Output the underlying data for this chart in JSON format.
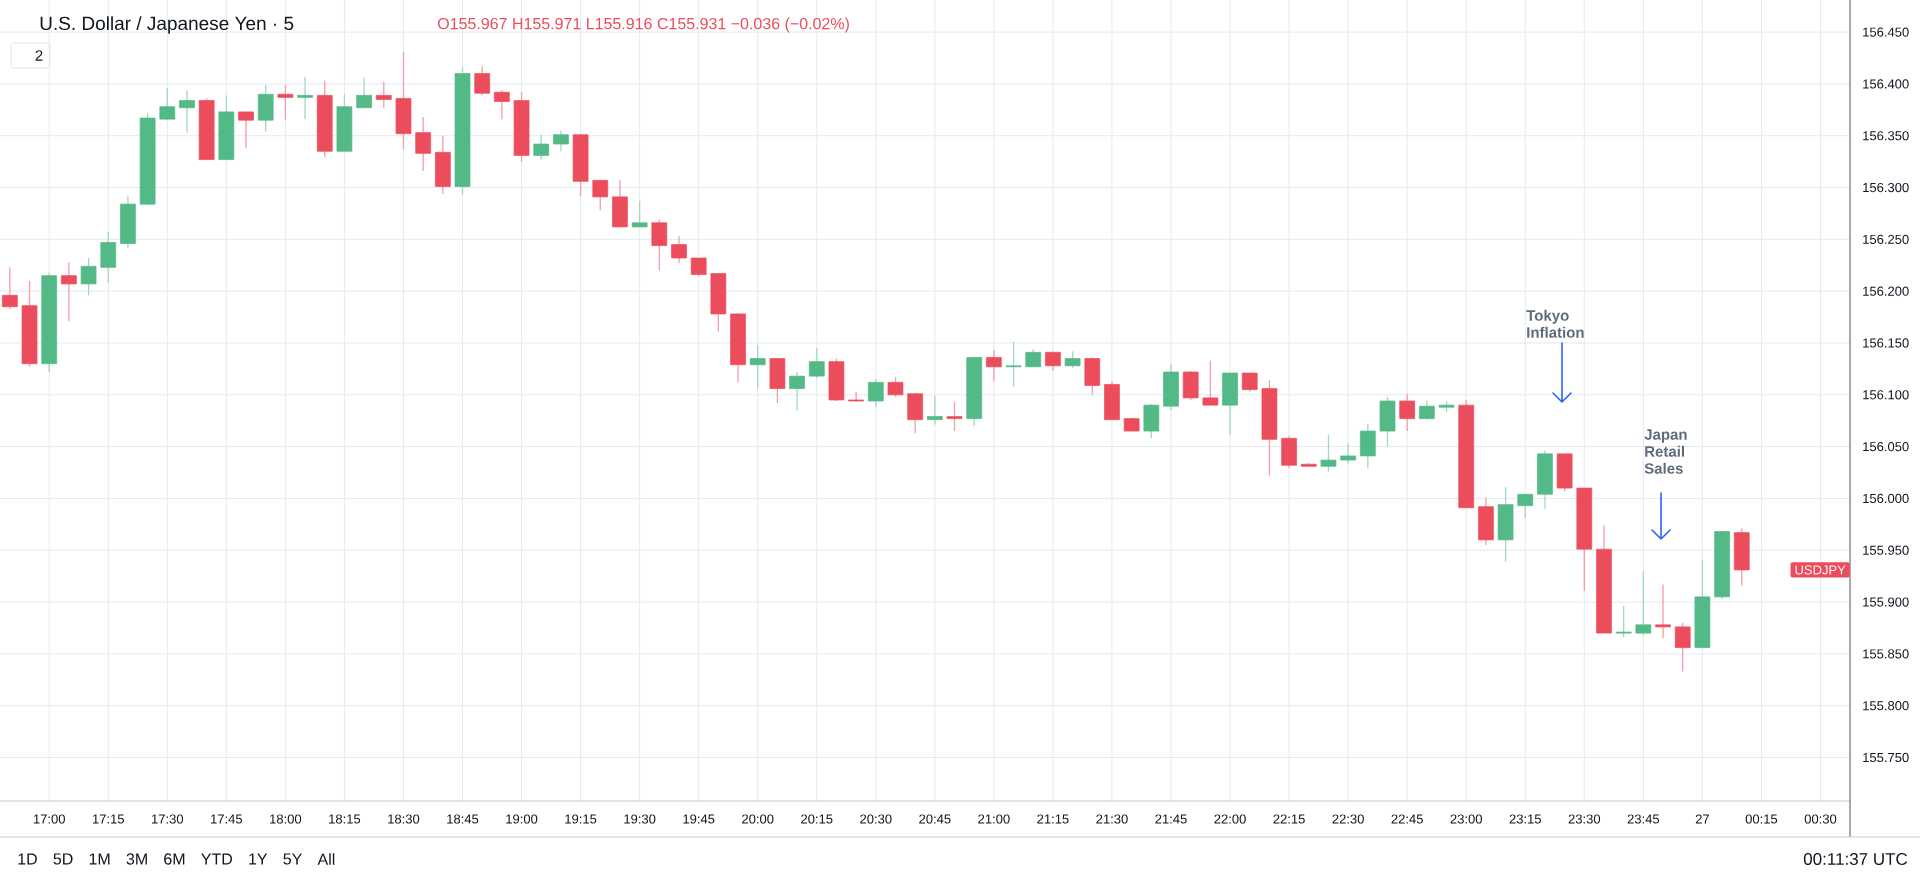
{
  "chart_data": {
    "type": "candlestick",
    "title": "U.S. Dollar / Japanese Yen · 5",
    "subtitle": "O155.967 H155.971 L155.916 C155.931 −0.036 (−0.02%)",
    "categories": [
      null,
      null,
      "17:00",
      null,
      null,
      "17:15",
      null,
      null,
      "17:30",
      null,
      null,
      "17:45",
      null,
      null,
      "18:00",
      null,
      null,
      "18:15",
      null,
      null,
      "18:30",
      null,
      null,
      "18:45",
      null,
      null,
      "19:00",
      null,
      null,
      "19:15",
      null,
      null,
      "19:30",
      null,
      null,
      "19:45",
      null,
      null,
      "20:00",
      null,
      null,
      "20:15",
      null,
      null,
      "20:30",
      null,
      null,
      "20:45",
      null,
      null,
      "21:00",
      null,
      null,
      "21:15",
      null,
      null,
      "21:30",
      null,
      null,
      "21:45",
      null,
      null,
      "22:00",
      null,
      null,
      "22:15",
      null,
      null,
      "22:30",
      null,
      null,
      "22:45",
      null,
      null,
      "23:00",
      null,
      null,
      "23:15",
      null,
      null,
      "23:30",
      null,
      null,
      "23:45",
      null,
      null,
      "27",
      null,
      null,
      "00:15",
      null,
      null,
      "00:30",
      null
    ],
    "series": [
      {
        "name": "USDJPY",
        "ohlc": [
          [
            156.196,
            156.223,
            156.183,
            156.185
          ],
          [
            156.186,
            156.21,
            156.127,
            156.13
          ],
          [
            156.13,
            156.218,
            156.122,
            156.215
          ],
          [
            156.215,
            156.228,
            156.171,
            156.207
          ],
          [
            156.207,
            156.232,
            156.196,
            156.224
          ],
          [
            156.223,
            156.257,
            156.208,
            156.247
          ],
          [
            156.246,
            156.292,
            156.242,
            156.284
          ],
          [
            156.284,
            156.372,
            156.283,
            156.367
          ],
          [
            156.366,
            156.396,
            156.365,
            156.378
          ],
          [
            156.377,
            156.394,
            156.353,
            156.384
          ],
          [
            156.384,
            156.386,
            156.327,
            156.327
          ],
          [
            156.327,
            156.389,
            156.327,
            156.373
          ],
          [
            156.373,
            156.373,
            156.338,
            156.365
          ],
          [
            156.365,
            156.399,
            156.354,
            156.39
          ],
          [
            156.39,
            156.399,
            156.365,
            156.387
          ],
          [
            156.387,
            156.407,
            156.366,
            156.389
          ],
          [
            156.389,
            156.403,
            156.329,
            156.335
          ],
          [
            156.335,
            156.39,
            156.335,
            156.378
          ],
          [
            156.377,
            156.406,
            156.377,
            156.389
          ],
          [
            156.389,
            156.402,
            156.377,
            156.385
          ],
          [
            156.386,
            156.431,
            156.337,
            156.352
          ],
          [
            156.353,
            156.368,
            156.316,
            156.333
          ],
          [
            156.334,
            156.35,
            156.294,
            156.301
          ],
          [
            156.301,
            156.416,
            156.293,
            156.41
          ],
          [
            156.41,
            156.417,
            156.389,
            156.391
          ],
          [
            156.392,
            156.394,
            156.366,
            156.383
          ],
          [
            156.384,
            156.392,
            156.325,
            156.331
          ],
          [
            156.331,
            156.351,
            156.327,
            156.342
          ],
          [
            156.342,
            156.355,
            156.335,
            156.351
          ],
          [
            156.351,
            156.351,
            156.292,
            156.306
          ],
          [
            156.307,
            156.307,
            156.278,
            156.291
          ],
          [
            156.291,
            156.307,
            156.262,
            156.262
          ],
          [
            156.262,
            156.287,
            156.262,
            156.266
          ],
          [
            156.266,
            156.269,
            156.22,
            156.244
          ],
          [
            156.245,
            156.253,
            156.227,
            156.232
          ],
          [
            156.232,
            156.232,
            156.215,
            156.216
          ],
          [
            156.217,
            156.217,
            156.161,
            156.178
          ],
          [
            156.178,
            156.179,
            156.112,
            156.129
          ],
          [
            156.129,
            156.148,
            156.106,
            156.135
          ],
          [
            156.135,
            156.135,
            156.092,
            156.106
          ],
          [
            156.106,
            156.122,
            156.085,
            156.118
          ],
          [
            156.118,
            156.145,
            156.116,
            156.132
          ],
          [
            156.132,
            156.135,
            156.094,
            156.095
          ],
          [
            156.095,
            156.103,
            156.093,
            156.094
          ],
          [
            156.094,
            156.115,
            156.088,
            156.112
          ],
          [
            156.112,
            156.117,
            156.098,
            156.1
          ],
          [
            156.101,
            156.102,
            156.063,
            156.076
          ],
          [
            156.076,
            156.099,
            156.071,
            156.079
          ],
          [
            156.079,
            156.093,
            156.065,
            156.077
          ],
          [
            156.077,
            156.136,
            156.07,
            156.136
          ],
          [
            156.136,
            156.143,
            156.113,
            156.127
          ],
          [
            156.127,
            156.151,
            156.108,
            156.128
          ],
          [
            156.127,
            156.144,
            156.127,
            156.141
          ],
          [
            156.141,
            156.142,
            156.123,
            156.128
          ],
          [
            156.128,
            156.142,
            156.126,
            156.135
          ],
          [
            156.135,
            156.136,
            156.1,
            156.109
          ],
          [
            156.11,
            156.113,
            156.076,
            156.076
          ],
          [
            156.077,
            156.078,
            156.065,
            156.065
          ],
          [
            156.065,
            156.091,
            156.058,
            156.09
          ],
          [
            156.089,
            156.13,
            156.085,
            156.122
          ],
          [
            156.122,
            156.123,
            156.095,
            156.097
          ],
          [
            156.097,
            156.133,
            156.09,
            156.09
          ],
          [
            156.09,
            156.121,
            156.062,
            156.121
          ],
          [
            156.121,
            156.121,
            156.103,
            156.105
          ],
          [
            156.106,
            156.114,
            156.022,
            156.057
          ],
          [
            156.058,
            156.06,
            156.029,
            156.032
          ],
          [
            156.033,
            156.034,
            156.031,
            156.031
          ],
          [
            156.031,
            156.061,
            156.026,
            156.037
          ],
          [
            156.037,
            156.053,
            156.033,
            156.041
          ],
          [
            156.041,
            156.072,
            156.029,
            156.065
          ],
          [
            156.065,
            156.098,
            156.05,
            156.094
          ],
          [
            156.094,
            156.101,
            156.065,
            156.077
          ],
          [
            156.077,
            156.094,
            156.076,
            156.089
          ],
          [
            156.088,
            156.094,
            156.083,
            156.09
          ],
          [
            156.09,
            156.095,
            155.991,
            155.991
          ],
          [
            155.992,
            156.001,
            155.955,
            155.96
          ],
          [
            155.96,
            156.011,
            155.939,
            155.994
          ],
          [
            155.993,
            156.004,
            155.981,
            156.004
          ],
          [
            156.004,
            156.046,
            155.99,
            156.043
          ],
          [
            156.043,
            156.043,
            156.007,
            156.01
          ],
          [
            156.01,
            156.01,
            155.911,
            155.951
          ],
          [
            155.951,
            155.974,
            155.87,
            155.87
          ],
          [
            155.87,
            155.896,
            155.866,
            155.871
          ],
          [
            155.87,
            155.93,
            155.868,
            155.878
          ],
          [
            155.878,
            155.917,
            155.865,
            155.876
          ],
          [
            155.876,
            155.88,
            155.833,
            155.856
          ],
          [
            155.856,
            155.941,
            155.856,
            155.905
          ],
          [
            155.905,
            155.969,
            155.903,
            155.968
          ],
          [
            155.967,
            155.971,
            155.916,
            155.931
          ],
          null,
          null,
          null,
          null,
          null
        ],
        "colors": [
          "#eb4d5c",
          "#eb4d5c",
          "#53b987",
          "#eb4d5c",
          "#53b987",
          "#53b987",
          "#53b987",
          "#53b987",
          "#53b987",
          "#53b987",
          "#eb4d5c",
          "#53b987",
          "#eb4d5c",
          "#53b987",
          "#eb4d5c",
          "#53b987",
          "#eb4d5c",
          "#53b987",
          "#53b987",
          "#eb4d5c",
          "#eb4d5c",
          "#eb4d5c",
          "#eb4d5c",
          "#53b987",
          "#eb4d5c",
          "#eb4d5c",
          "#eb4d5c",
          "#53b987",
          "#53b987",
          "#eb4d5c",
          "#eb4d5c",
          "#eb4d5c",
          "#53b987",
          "#eb4d5c",
          "#eb4d5c",
          "#eb4d5c",
          "#eb4d5c",
          "#eb4d5c",
          "#53b987",
          "#eb4d5c",
          "#53b987",
          "#53b987",
          "#eb4d5c",
          "#eb4d5c",
          "#53b987",
          "#eb4d5c",
          "#eb4d5c",
          "#53b987",
          "#eb4d5c",
          "#53b987",
          "#eb4d5c",
          "#53b987",
          "#53b987",
          "#eb4d5c",
          "#53b987",
          "#eb4d5c",
          "#eb4d5c",
          "#eb4d5c",
          "#53b987",
          "#53b987",
          "#eb4d5c",
          "#eb4d5c",
          "#53b987",
          "#eb4d5c",
          "#eb4d5c",
          "#eb4d5c",
          "#eb4d5c",
          "#53b987",
          "#53b987",
          "#53b987",
          "#53b987",
          "#eb4d5c",
          "#53b987",
          "#53b987",
          "#eb4d5c",
          "#eb4d5c",
          "#53b987",
          "#53b987",
          "#53b987",
          "#eb4d5c",
          "#eb4d5c",
          "#eb4d5c",
          "#53b987",
          "#53b987",
          "#eb4d5c",
          "#eb4d5c",
          "#53b987",
          "#53b987",
          "#eb4d5c",
          null,
          null,
          null,
          null,
          null
        ]
      }
    ],
    "ylim": [
      155.708,
      156.481
    ],
    "yticks": [
      {
        "value": 155.75,
        "label": "155.750"
      },
      {
        "value": 155.8,
        "label": "155.800"
      },
      {
        "value": 155.85,
        "label": "155.850"
      },
      {
        "value": 155.9,
        "label": "155.900"
      },
      {
        "value": 155.95,
        "label": "155.950"
      },
      {
        "value": 156,
        "label": "156.000"
      },
      {
        "value": 156.05,
        "label": "156.050"
      },
      {
        "value": 156.1,
        "label": "156.100"
      },
      {
        "value": 156.15,
        "label": "156.150"
      },
      {
        "value": 156.2,
        "label": "156.200"
      },
      {
        "value": 156.25,
        "label": "156.250"
      },
      {
        "value": 156.3,
        "label": "156.300"
      },
      {
        "value": 156.35,
        "label": "156.350"
      },
      {
        "value": 156.4,
        "label": "156.400"
      },
      {
        "value": 156.45,
        "label": "156.450"
      }
    ],
    "grid": true,
    "annotations": [
      "Tokyo Inflation",
      "Japan Retail Sales",
      "2",
      "1D",
      "5D",
      "1M",
      "3M",
      "6M",
      "YTD",
      "1Y",
      "5Y",
      "All",
      "00:11:37 UTC"
    ]
  }
}
